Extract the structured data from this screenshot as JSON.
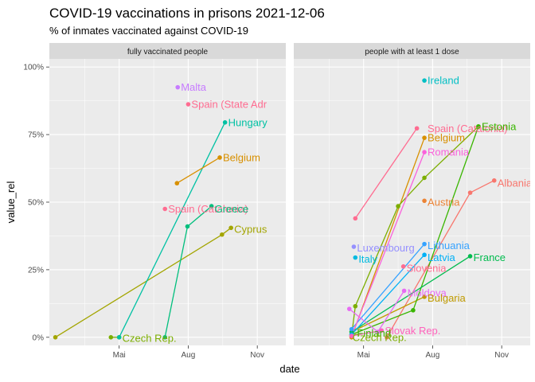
{
  "chart_data": {
    "type": "scatter",
    "title": "COVID-19 vaccinations in prisons 2021-12-06",
    "subtitle": "% of inmates vaccinated against COVID-19",
    "xlabel": "date",
    "ylabel": "value_rel",
    "x_ticks": [
      "2021-05-01",
      "2021-08-01",
      "2021-11-01"
    ],
    "x_tick_labels": [
      "Mai",
      "Aug",
      "Nov"
    ],
    "xlim": [
      "2021-01-28",
      "2021-12-09"
    ],
    "ylim": [
      -0.03,
      1.03
    ],
    "y_ticks": [
      0,
      0.25,
      0.5,
      0.75,
      1.0
    ],
    "y_tick_labels": [
      "0%",
      "25%",
      "50%",
      "75%",
      "100%"
    ],
    "grid": true,
    "legend": "none",
    "colors": {
      "Albania": "#F8766D",
      "Austria": "#EB8335",
      "Belgium": "#D89000",
      "Bulgaria": "#C09B00",
      "Cyprus": "#A3A500",
      "Czech Rep.": "#7CAE00",
      "Estonia": "#39B600",
      "France": "#00BB4E",
      "Greece": "#00BF7D",
      "Hungary": "#00C1A3",
      "Ireland": "#00BFC4",
      "Italy": "#00BAE0",
      "Latvia": "#00B0F6",
      "Lithuania": "#35A2FF",
      "Luxembourg": "#9590FF",
      "Malta": "#C77CFF",
      "Moldova": "#E76BF3",
      "Romania": "#FA62DB",
      "Slovak Rep.": "#FF62BC",
      "Slovenia": "#FF6C91",
      "Spain (Catalonia)": "#FF6C91",
      "Finland": "#39B600",
      "Spain (State Administration)": "#FF6C91"
    },
    "facets": [
      {
        "label": "fully vaccinated people",
        "series": [
          {
            "name": "Cyprus",
            "points": [
              {
                "x": "2021-02-05",
                "y": 0.0
              },
              {
                "x": "2021-09-15",
                "y": 0.38
              },
              {
                "x": "2021-09-27",
                "y": 0.405
              }
            ]
          },
          {
            "name": "Czech Rep.",
            "points": [
              {
                "x": "2021-04-20",
                "y": 0.0
              },
              {
                "x": "2021-05-01",
                "y": 0.0
              }
            ]
          },
          {
            "name": "Greece",
            "points": [
              {
                "x": "2021-07-01",
                "y": 0.0
              },
              {
                "x": "2021-07-31",
                "y": 0.41
              },
              {
                "x": "2021-09-01",
                "y": 0.485
              }
            ]
          },
          {
            "name": "Hungary",
            "points": [
              {
                "x": "2021-05-01",
                "y": 0.0
              },
              {
                "x": "2021-09-19",
                "y": 0.795
              }
            ]
          },
          {
            "name": "Belgium",
            "points": [
              {
                "x": "2021-07-17",
                "y": 0.57
              },
              {
                "x": "2021-09-12",
                "y": 0.665
              }
            ]
          },
          {
            "name": "Spain (Catalonia)",
            "points": [
              {
                "x": "2021-07-01",
                "y": 0.475
              }
            ]
          },
          {
            "name": "Malta",
            "points": [
              {
                "x": "2021-07-18",
                "y": 0.925
              }
            ]
          },
          {
            "name": "Spain (State Administration)",
            "points": [
              {
                "x": "2021-08-01",
                "y": 0.862
              }
            ]
          }
        ],
        "labels": [
          {
            "text": "Malta",
            "x": "2021-07-18",
            "y": 0.925
          },
          {
            "text": "Spain (State Adr",
            "x": "2021-08-01",
            "y": 0.862
          },
          {
            "text": "Hungary",
            "x": "2021-09-19",
            "y": 0.795
          },
          {
            "text": "Belgium",
            "x": "2021-09-12",
            "y": 0.665
          },
          {
            "text": "Spain (Catalonia)",
            "x": "2021-07-01",
            "y": 0.475
          },
          {
            "text": "Greece",
            "x": "2021-09-01",
            "y": 0.475
          },
          {
            "text": "Cyprus",
            "x": "2021-09-27",
            "y": 0.4
          },
          {
            "text": "Czech Rep.",
            "x": "2021-05-01",
            "y": -0.003
          }
        ]
      },
      {
        "label": "people with at least 1 dose",
        "series": [
          {
            "name": "Albania",
            "points": [
              {
                "x": "2021-06-01",
                "y": 0.0
              },
              {
                "x": "2021-09-20",
                "y": 0.535
              },
              {
                "x": "2021-10-22",
                "y": 0.58
              }
            ]
          },
          {
            "name": "Austria",
            "points": [
              {
                "x": "2021-07-21",
                "y": 0.505
              }
            ]
          },
          {
            "name": "Belgium",
            "points": [
              {
                "x": "2021-04-15",
                "y": 0.0
              },
              {
                "x": "2021-07-21",
                "y": 0.738
              }
            ]
          },
          {
            "name": "Bulgaria",
            "points": [
              {
                "x": "2021-04-15",
                "y": 0.02
              },
              {
                "x": "2021-07-21",
                "y": 0.15
              }
            ]
          },
          {
            "name": "Czech Rep.",
            "points": [
              {
                "x": "2021-04-15",
                "y": 0.005
              },
              {
                "x": "2021-04-20",
                "y": 0.115
              },
              {
                "x": "2021-06-16",
                "y": 0.485
              },
              {
                "x": "2021-07-21",
                "y": 0.59
              },
              {
                "x": "2021-10-01",
                "y": 0.78
              }
            ]
          },
          {
            "name": "Estonia",
            "points": [
              {
                "x": "2021-04-15",
                "y": 0.01
              },
              {
                "x": "2021-07-06",
                "y": 0.1
              },
              {
                "x": "2021-10-01",
                "y": 0.78
              }
            ]
          },
          {
            "name": "France",
            "points": [
              {
                "x": "2021-04-15",
                "y": 0.02
              },
              {
                "x": "2021-09-20",
                "y": 0.3
              }
            ]
          },
          {
            "name": "Ireland",
            "points": [
              {
                "x": "2021-07-21",
                "y": 0.95
              }
            ]
          },
          {
            "name": "Italy",
            "points": [
              {
                "x": "2021-04-20",
                "y": 0.295
              }
            ]
          },
          {
            "name": "Latvia",
            "points": [
              {
                "x": "2021-04-15",
                "y": 0.01
              },
              {
                "x": "2021-07-21",
                "y": 0.305
              }
            ]
          },
          {
            "name": "Lithuania",
            "points": [
              {
                "x": "2021-04-15",
                "y": 0.03
              },
              {
                "x": "2021-07-21",
                "y": 0.345
              }
            ]
          },
          {
            "name": "Luxembourg",
            "points": [
              {
                "x": "2021-04-18",
                "y": 0.335
              }
            ]
          },
          {
            "name": "Moldova",
            "points": [
              {
                "x": "2021-04-12",
                "y": 0.105
              },
              {
                "x": "2021-05-20",
                "y": 0.02
              },
              {
                "x": "2021-06-24",
                "y": 0.172
              }
            ]
          },
          {
            "name": "Romania",
            "points": [
              {
                "x": "2021-04-15",
                "y": 0.005
              },
              {
                "x": "2021-07-21",
                "y": 0.685
              }
            ]
          },
          {
            "name": "Slovak Rep.",
            "points": [
              {
                "x": "2021-04-15",
                "y": 0.005
              },
              {
                "x": "2021-05-25",
                "y": 0.025
              }
            ]
          },
          {
            "name": "Slovenia",
            "points": [
              {
                "x": "2021-06-23",
                "y": 0.262
              }
            ]
          },
          {
            "name": "Spain (Catalonia)",
            "points": [
              {
                "x": "2021-04-20",
                "y": 0.44
              },
              {
                "x": "2021-07-11",
                "y": 0.773
              }
            ]
          }
        ],
        "labels": [
          {
            "text": "Ireland",
            "x": "2021-07-21",
            "y": 0.95
          },
          {
            "text": "Spain (Catalonia)",
            "x": "2021-07-21",
            "y": 0.773
          },
          {
            "text": "Estonia",
            "x": "2021-10-01",
            "y": 0.78
          },
          {
            "text": "Belgium",
            "x": "2021-07-21",
            "y": 0.738
          },
          {
            "text": "Romania",
            "x": "2021-07-21",
            "y": 0.685
          },
          {
            "text": "Albania",
            "x": "2021-10-22",
            "y": 0.57
          },
          {
            "text": "Austria",
            "x": "2021-07-21",
            "y": 0.5
          },
          {
            "text": "Luxembourg",
            "x": "2021-04-18",
            "y": 0.33
          },
          {
            "text": "Lithuania",
            "x": "2021-07-21",
            "y": 0.34
          },
          {
            "text": "Italy",
            "x": "2021-04-20",
            "y": 0.29
          },
          {
            "text": "Latvia",
            "x": "2021-07-21",
            "y": 0.295
          },
          {
            "text": "France",
            "x": "2021-09-20",
            "y": 0.295
          },
          {
            "text": "Slovenia",
            "x": "2021-06-23",
            "y": 0.255
          },
          {
            "text": "Moldova",
            "x": "2021-06-24",
            "y": 0.165
          },
          {
            "text": "Bulgaria",
            "x": "2021-07-21",
            "y": 0.145
          },
          {
            "text": "Slovak Rep.",
            "x": "2021-05-25",
            "y": 0.025
          },
          {
            "text": "Finland",
            "x": "2021-04-18",
            "y": 0.015
          },
          {
            "text": "Czech Rep.",
            "x": "2021-04-12",
            "y": 0.0
          }
        ]
      }
    ]
  }
}
